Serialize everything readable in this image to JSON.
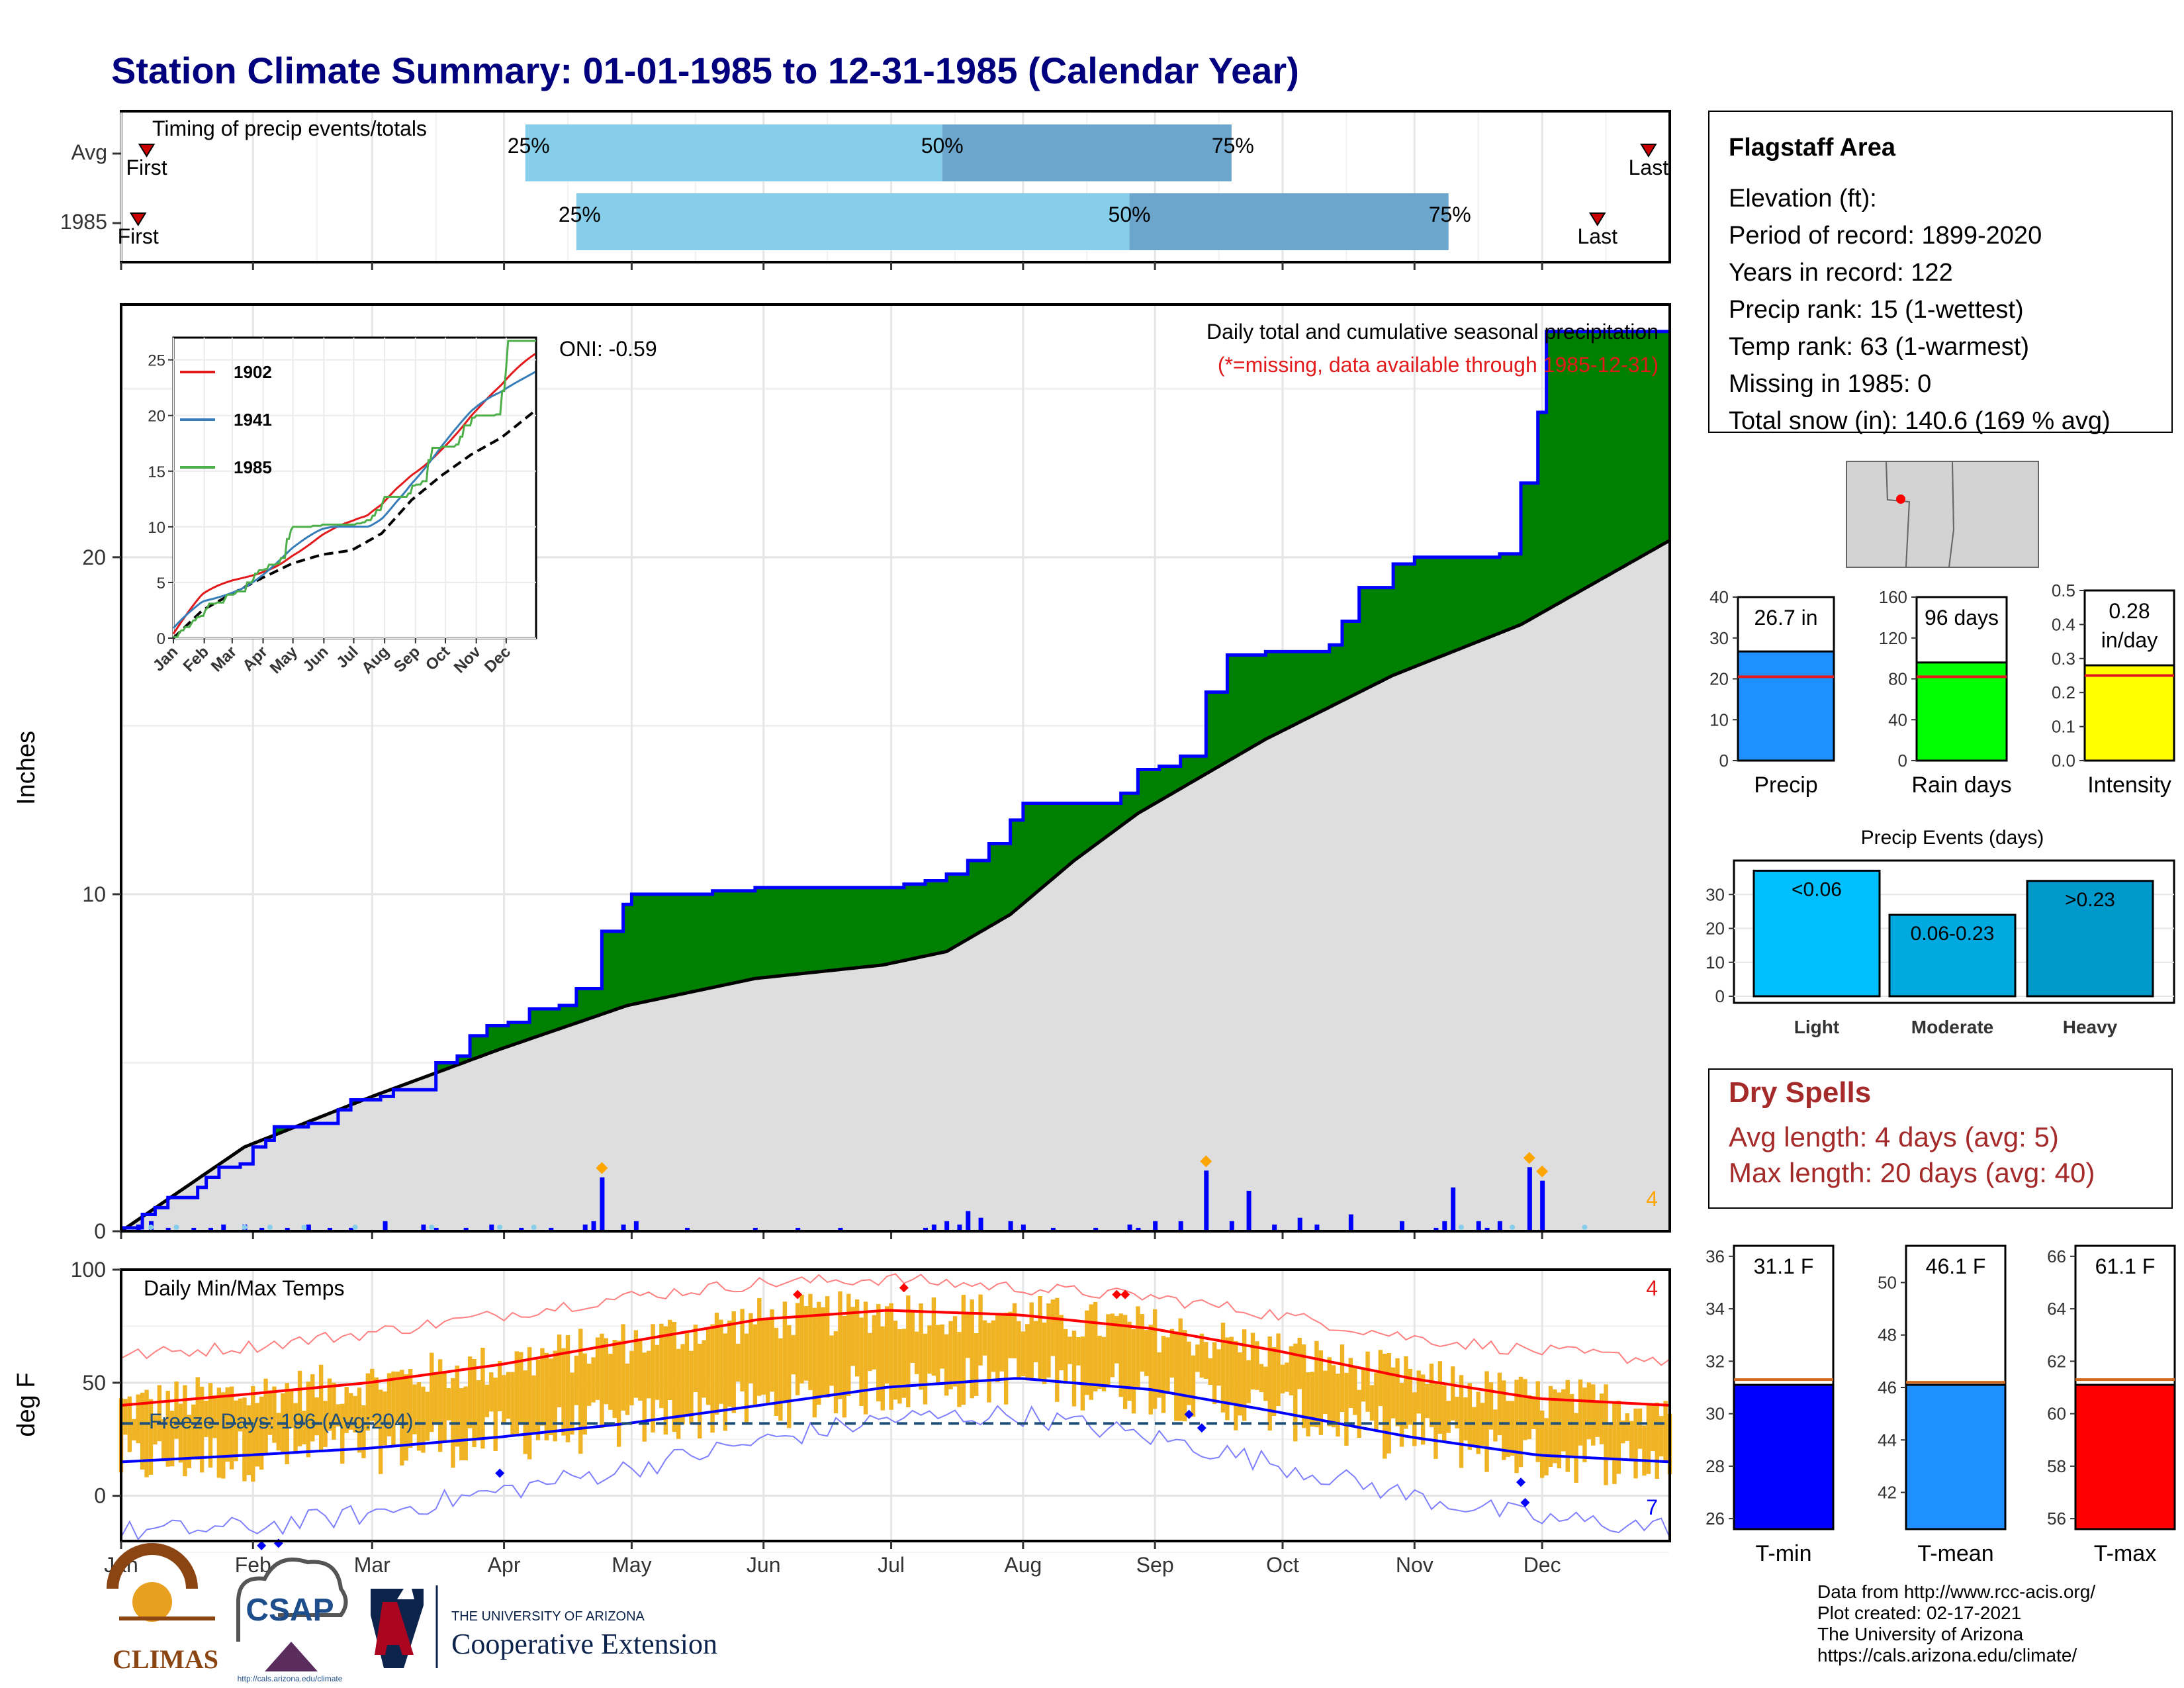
{
  "title": "Station Climate Summary: 01-01-1985 to 12-31-1985 (Calendar Year)",
  "timing": {
    "label": "Timing of precip events/totals",
    "rows": [
      {
        "name": "Avg",
        "first_label": "First",
        "last_label": "Last",
        "q25": "25%",
        "q50": "50%",
        "q75": "75%",
        "first_doy": 7,
        "last_doy": 360,
        "q25_doy": 96,
        "q50_doy": 194,
        "q75_doy": 262
      },
      {
        "name": "1985",
        "first_label": "First",
        "last_label": "Last",
        "q25": "25%",
        "q50": "50%",
        "q75": "75%",
        "first_doy": 5,
        "last_doy": 348,
        "q25_doy": 108,
        "q50_doy": 238,
        "q75_doy": 313
      }
    ]
  },
  "main": {
    "annotation_title": "Daily total and cumulative seasonal precipitation",
    "annotation_missing": "(*=missing, data available through 1985-12-31)",
    "ylabel": "Inches",
    "yticks": [
      "0",
      "10",
      "20"
    ],
    "corner_count": "4",
    "oni": "ONI: -0.59"
  },
  "inset": {
    "legend": [
      "1902",
      "1941",
      "1985"
    ],
    "colors": [
      "#e31a1c",
      "#377eb8",
      "#4daf4a"
    ],
    "yticks": [
      "0",
      "5",
      "10",
      "15",
      "20",
      "25"
    ],
    "xticks": [
      "Jan",
      "Feb",
      "Mar",
      "Apr",
      "May",
      "Jun",
      "Jul",
      "Aug",
      "Sep",
      "Oct",
      "Nov",
      "Dec"
    ]
  },
  "temps": {
    "label": "Daily Min/Max Temps",
    "freeze": "Freeze Days: 196 (Avg:204)",
    "ylabel": "deg F",
    "yticks": [
      "0",
      "50",
      "100"
    ],
    "count_top": "4",
    "count_bottom": "7",
    "months": [
      "Jan",
      "Feb",
      "Mar",
      "Apr",
      "May",
      "Jun",
      "Jul",
      "Aug",
      "Sep",
      "Oct",
      "Nov",
      "Dec"
    ]
  },
  "info": {
    "station": "Flagstaff Area",
    "lines": [
      "Elevation (ft):",
      "Period of record: 1899-2020",
      "Years in record: 122",
      "Precip rank: 15 (1-wettest)",
      "Temp rank: 63 (1-warmest)",
      "Missing in 1985: 0",
      "Total snow (in): 140.6 (169 % avg)"
    ]
  },
  "stats": [
    {
      "name": "Precip",
      "value_label": "26.7 in",
      "yticks": [
        "0",
        "10",
        "20",
        "30",
        "40"
      ],
      "value": 26.7,
      "avg": 20.5,
      "ymax": 40,
      "color": "#1e90ff"
    },
    {
      "name": "Rain days",
      "value_label": "96 days",
      "yticks": [
        "0",
        "40",
        "80",
        "120",
        "160"
      ],
      "value": 96,
      "avg": 82,
      "ymax": 160,
      "color": "#00ff00"
    },
    {
      "name": "Intensity",
      "value_label": "0.28",
      "value_unit": "in/day",
      "yticks": [
        "0.0",
        "0.1",
        "0.2",
        "0.3",
        "0.4",
        "0.5"
      ],
      "value": 0.28,
      "avg": 0.25,
      "ymax": 0.5,
      "color": "#ffff00"
    }
  ],
  "events": {
    "title": "Precip Events (days)",
    "yticks": [
      "0",
      "10",
      "20",
      "30"
    ],
    "bars": [
      {
        "name": "Light",
        "label": "<0.06",
        "value": 37,
        "color": "#00bfff"
      },
      {
        "name": "Moderate",
        "label": "0.06-0.23",
        "value": 24,
        "color": "#00a9e0"
      },
      {
        "name": "Heavy",
        "label": ">0.23",
        "value": 34,
        "color": "#0099cc"
      }
    ]
  },
  "dry": {
    "title": "Dry Spells",
    "avg": "Avg length: 4 days (avg: 5)",
    "max": "Max length: 20 days (avg: 40)"
  },
  "temp_stats": [
    {
      "name": "T-min",
      "value_label": "31.1 F",
      "yticks": [
        "26",
        "28",
        "30",
        "32",
        "34",
        "36"
      ],
      "value": 31.1,
      "avg": 31.3,
      "ymin": 25.6,
      "ymax": 36.4,
      "color": "#0000ff"
    },
    {
      "name": "T-mean",
      "value_label": "46.1 F",
      "yticks": [
        "42",
        "44",
        "46",
        "48",
        "50"
      ],
      "value": 46.1,
      "avg": 46.2,
      "ymin": 40.6,
      "ymax": 51.4,
      "color": "#1e90ff"
    },
    {
      "name": "T-max",
      "value_label": "61.1 F",
      "yticks": [
        "56",
        "58",
        "60",
        "62",
        "64",
        "66"
      ],
      "value": 61.1,
      "avg": 61.3,
      "ymin": 55.6,
      "ymax": 66.4,
      "color": "#ff0000"
    }
  ],
  "footer": [
    "Data from http://www.rcc-acis.org/",
    "Plot created: 02-17-2021",
    "The University of Arizona",
    "https://cals.arizona.edu/climate/"
  ],
  "logos": {
    "climas": "CLIMAS",
    "csap": "CSAP",
    "csap_url": "http://cals.arizona.edu/climate",
    "ua_small": "THE UNIVERSITY OF ARIZONA",
    "ua_big": "Cooperative Extension"
  },
  "chart_data": [
    {
      "type": "area",
      "title": "Daily total and cumulative seasonal precipitation",
      "ylabel": "Inches",
      "ylim": [
        0,
        27.5
      ],
      "x_unit": "day of year",
      "series": [
        {
          "name": "Cumulative precip 1985",
          "x": [
            1,
            6,
            9,
            12,
            19,
            21,
            24,
            29,
            32,
            35,
            37,
            45,
            52,
            55,
            62,
            65,
            75,
            80,
            83,
            87,
            92,
            97,
            102,
            104,
            108,
            114,
            119,
            121,
            127,
            133,
            135,
            140,
            150,
            160,
            170,
            180,
            185,
            190,
            195,
            200,
            205,
            210,
            213,
            219,
            222,
            230,
            236,
            240,
            245,
            250,
            256,
            258,
            261,
            263,
            270,
            285,
            288,
            292,
            300,
            305,
            310,
            315,
            318,
            320,
            325,
            330,
            334,
            336,
            365
          ],
          "y": [
            0.1,
            0.5,
            0.7,
            1.0,
            1.3,
            1.6,
            1.9,
            2.0,
            2.5,
            2.7,
            3.1,
            3.2,
            3.6,
            3.9,
            4.0,
            4.2,
            5.0,
            5.2,
            5.8,
            6.1,
            6.2,
            6.6,
            6.6,
            6.7,
            7.2,
            8.9,
            9.7,
            10.0,
            10.0,
            10.0,
            10.0,
            10.1,
            10.2,
            10.2,
            10.2,
            10.2,
            10.3,
            10.4,
            10.6,
            11.0,
            11.5,
            12.2,
            12.7,
            12.7,
            12.7,
            12.7,
            13.0,
            13.7,
            13.8,
            14.1,
            16.0,
            16.0,
            17.1,
            17.1,
            17.2,
            17.4,
            18.1,
            19.1,
            19.8,
            20.0,
            20.0,
            20.0,
            20.0,
            20.0,
            20.1,
            22.2,
            24.3,
            26.7,
            26.7
          ]
        },
        {
          "name": "Average cumulative precip",
          "x": [
            1,
            30,
            60,
            90,
            120,
            150,
            180,
            195,
            210,
            225,
            240,
            270,
            300,
            330,
            365
          ],
          "y": [
            0.0,
            2.5,
            4.0,
            5.4,
            6.7,
            7.5,
            7.9,
            8.3,
            9.4,
            11.0,
            12.4,
            14.6,
            16.5,
            18.0,
            20.5
          ]
        },
        {
          "name": "Daily precip",
          "x": [
            5,
            8,
            12,
            18,
            22,
            25,
            30,
            34,
            40,
            45,
            50,
            55,
            63,
            72,
            75,
            82,
            88,
            95,
            102,
            110,
            112,
            114,
            119,
            122,
            134,
            150,
            160,
            170,
            190,
            192,
            195,
            198,
            200,
            203,
            210,
            213,
            220,
            230,
            238,
            240,
            244,
            250,
            256,
            262,
            266,
            272,
            278,
            282,
            290,
            302,
            310,
            312,
            314,
            320,
            322,
            325,
            332,
            335
          ],
          "y": [
            0.2,
            0.3,
            0.1,
            0.1,
            0.1,
            0.2,
            0.2,
            0.1,
            0.1,
            0.2,
            0.1,
            0.1,
            0.3,
            0.2,
            0.1,
            0.1,
            0.2,
            0.1,
            0.1,
            0.2,
            0.3,
            1.6,
            0.2,
            0.3,
            0.1,
            0.1,
            0.1,
            0.1,
            0.1,
            0.2,
            0.3,
            0.2,
            0.6,
            0.4,
            0.3,
            0.2,
            0.1,
            0.1,
            0.2,
            0.1,
            0.3,
            0.3,
            1.8,
            0.3,
            1.2,
            0.2,
            0.4,
            0.2,
            0.5,
            0.3,
            0.1,
            0.3,
            1.3,
            0.3,
            0.1,
            0.3,
            1.9,
            1.5
          ]
        }
      ]
    },
    {
      "type": "line",
      "title": "Daily Min/Max Temps",
      "ylabel": "deg F",
      "ylim": [
        -20,
        100
      ],
      "x_unit": "day of year",
      "series": [
        {
          "name": "Avg max",
          "x": [
            1,
            31,
            59,
            90,
            120,
            151,
            181,
            212,
            243,
            273,
            304,
            334,
            365
          ],
          "y": [
            40,
            45,
            50,
            58,
            68,
            78,
            82,
            80,
            74,
            64,
            52,
            43,
            40
          ]
        },
        {
          "name": "Avg min",
          "x": [
            1,
            31,
            59,
            90,
            120,
            151,
            181,
            212,
            243,
            273,
            304,
            334,
            365
          ],
          "y": [
            15,
            18,
            21,
            26,
            32,
            40,
            48,
            52,
            47,
            37,
            26,
            18,
            15
          ]
        },
        {
          "name": "Record max",
          "x": [
            1,
            31,
            59,
            90,
            120,
            151,
            181,
            212,
            243,
            273,
            304,
            334,
            365
          ],
          "y": [
            62,
            66,
            72,
            80,
            88,
            94,
            96,
            92,
            88,
            80,
            70,
            64,
            60
          ]
        },
        {
          "name": "Record min",
          "x": [
            1,
            31,
            59,
            90,
            120,
            151,
            181,
            212,
            243,
            273,
            304,
            334,
            365
          ],
          "y": [
            -16,
            -14,
            -8,
            2,
            12,
            24,
            34,
            36,
            26,
            14,
            0,
            -10,
            -14
          ]
        }
      ]
    }
  ]
}
